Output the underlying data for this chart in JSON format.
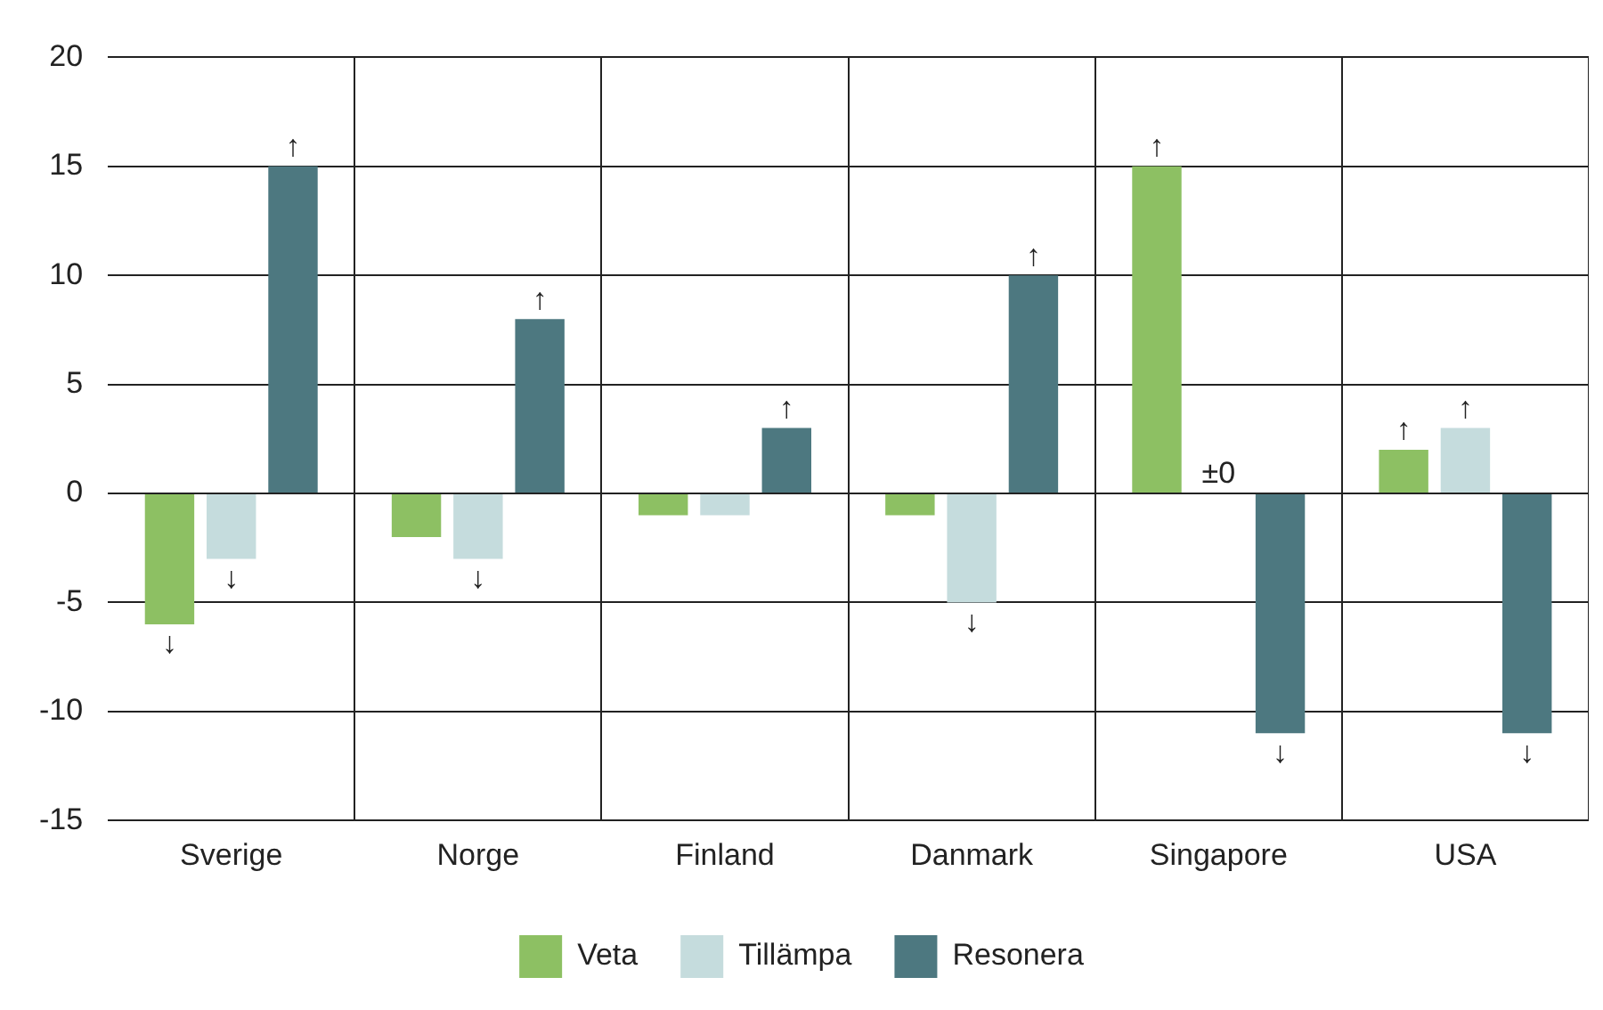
{
  "chart_data": {
    "type": "bar",
    "categories": [
      "Sverige",
      "Norge",
      "Finland",
      "Danmark",
      "Singapore",
      "USA"
    ],
    "series": [
      {
        "name": "Veta",
        "color": "#8dc063",
        "values": [
          -6,
          -2,
          -1,
          -1,
          15,
          2
        ],
        "value_labels": [
          "↓",
          null,
          null,
          null,
          "↑",
          "↑"
        ]
      },
      {
        "name": "Tillämpa",
        "color": "#c5dcdd",
        "values": [
          -3,
          -3,
          -1,
          -5,
          0,
          3
        ],
        "value_labels": [
          "↓",
          "↓",
          null,
          "↓",
          "±0",
          "↑"
        ]
      },
      {
        "name": "Resonera",
        "color": "#4d7880",
        "values": [
          15,
          8,
          3,
          10,
          -11,
          -11
        ],
        "value_labels": [
          "↑",
          "↑",
          "↑",
          "↑",
          "↓",
          "↓"
        ]
      }
    ],
    "ylim": [
      -15,
      20
    ],
    "yticks": [
      -15,
      -10,
      -5,
      0,
      5,
      10,
      15,
      20
    ],
    "grid": true,
    "legend": "bottom"
  }
}
